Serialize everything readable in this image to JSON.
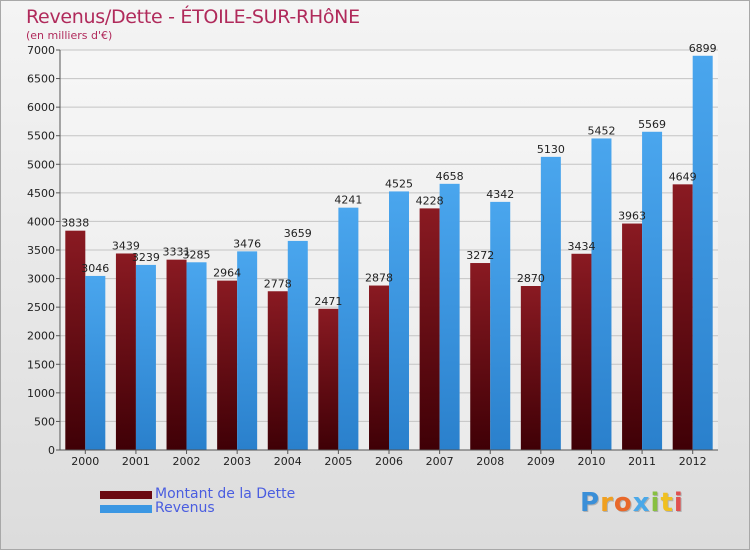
{
  "title": "Revenus/Dette - ÉTOILE-SUR-RHôNE",
  "subtitle": "(en milliers d'€)",
  "colors": {
    "debt": "#6b0a12",
    "revenue": "#3b97e3",
    "title": "#b02a5b",
    "legend_text": "#4a5de0"
  },
  "legend": {
    "debt_label": "Montant de la Dette",
    "revenue_label": "Revenus"
  },
  "logo": {
    "letters": [
      {
        "ch": "P",
        "color": "#3a8fd8"
      },
      {
        "ch": "r",
        "color": "#f0a020"
      },
      {
        "ch": "o",
        "color": "#e8682a"
      },
      {
        "ch": "x",
        "color": "#4aa8e8"
      },
      {
        "ch": "i",
        "color": "#88c040"
      },
      {
        "ch": "t",
        "color": "#f0c020"
      },
      {
        "ch": "i",
        "color": "#e05050"
      }
    ]
  },
  "chart_data": {
    "type": "bar",
    "title": "Revenus/Dette - ÉTOILE-SUR-RHôNE",
    "ylabel": "(en milliers d'€)",
    "xlabel": "",
    "ylim": [
      0,
      7000
    ],
    "ytick_step": 500,
    "grid": true,
    "categories": [
      "2000",
      "2001",
      "2002",
      "2003",
      "2004",
      "2005",
      "2006",
      "2007",
      "2008",
      "2009",
      "2010",
      "2011",
      "2012"
    ],
    "series": [
      {
        "name": "Montant de la Dette",
        "values": [
          3838,
          3439,
          3331,
          2964,
          2778,
          2471,
          2878,
          4228,
          3272,
          2870,
          3434,
          3963,
          4649
        ]
      },
      {
        "name": "Revenus",
        "values": [
          3046,
          3239,
          3285,
          3476,
          3659,
          4241,
          4525,
          4658,
          4342,
          5130,
          5452,
          5569,
          6899
        ]
      }
    ]
  }
}
